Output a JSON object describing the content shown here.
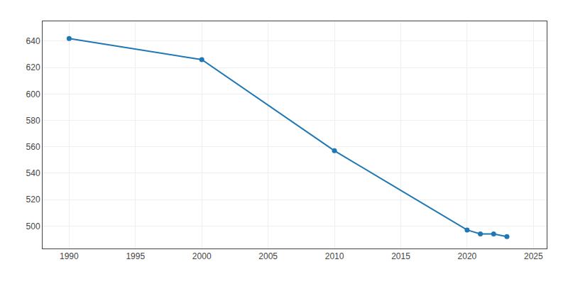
{
  "chart_data": {
    "type": "line",
    "x": [
      1990,
      2000,
      2010,
      2020,
      2021,
      2022,
      2023
    ],
    "values": [
      642,
      626,
      557,
      497,
      494,
      494,
      492
    ],
    "marker": "circle",
    "xlim": [
      1988,
      2026
    ],
    "ylim": [
      483,
      655
    ],
    "xticks": [
      1990,
      1995,
      2000,
      2005,
      2010,
      2015,
      2020,
      2025
    ],
    "yticks": [
      500,
      520,
      540,
      560,
      580,
      600,
      620,
      640
    ],
    "grid": true
  }
}
